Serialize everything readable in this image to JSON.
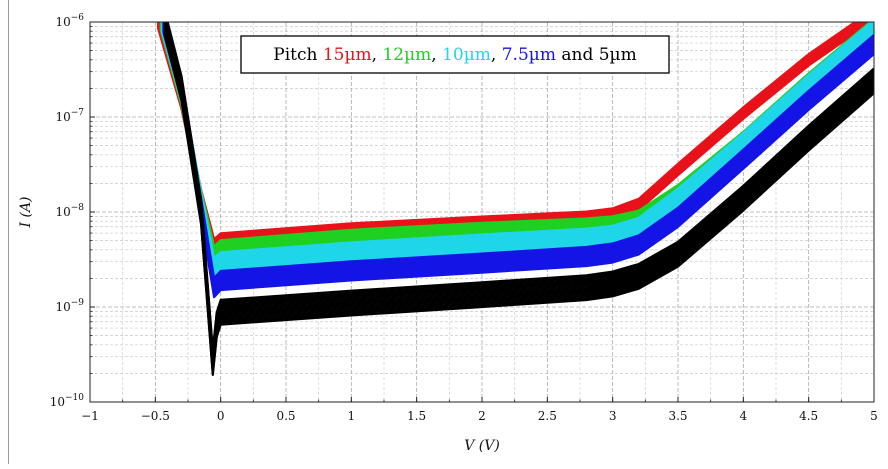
{
  "chart_data": {
    "type": "line",
    "title": "",
    "xlabel": "V (V)",
    "ylabel": "I (A)",
    "xlim": [
      -1,
      5
    ],
    "ylim": [
      1e-10,
      1e-06
    ],
    "yscale": "log",
    "grid": true,
    "legend": {
      "placement": "top-center",
      "prefix": "Pitch ",
      "items": [
        {
          "text": "15µm",
          "color": "#e8121b",
          "sep": ", "
        },
        {
          "text": "12µm",
          "color": "#20d020",
          "sep": ", "
        },
        {
          "text": "10µm",
          "color": "#1ed6e8",
          "sep": ", "
        },
        {
          "text": "7.5µm",
          "color": "#1414e6",
          "sep": " and "
        },
        {
          "text": "5µm",
          "color": "#000000",
          "sep": ""
        }
      ]
    },
    "x_ticks": [
      "−1",
      "−0.5",
      "0",
      "0.5",
      "1",
      "1.5",
      "2",
      "2.5",
      "3",
      "3.5",
      "4",
      "4.5",
      "5"
    ],
    "x_tick_values": [
      -1,
      -0.5,
      0,
      0.5,
      1,
      1.5,
      2,
      2.5,
      3,
      3.5,
      4,
      4.5,
      5
    ],
    "y_tick_exponents": [
      -10,
      -9,
      -8,
      -7,
      -6
    ],
    "series": [
      {
        "name": "15µm",
        "color": "#e8121b",
        "band": 0.06,
        "x": [
          -0.48,
          -0.3,
          -0.15,
          -0.05,
          0.0,
          1.0,
          2.0,
          2.8,
          3.0,
          3.2,
          3.5,
          4.0,
          4.5,
          5.0
        ],
        "y": [
          1e-06,
          1.4e-07,
          1.5e-08,
          4.5e-09,
          5.2e-09,
          6.6e-09,
          7.8e-09,
          8.8e-09,
          9.5e-09,
          1.2e-08,
          2.8e-08,
          1.1e-07,
          4e-07,
          1.2e-06
        ]
      },
      {
        "name": "12µm",
        "color": "#20d020",
        "band": 0.08,
        "x": [
          -0.46,
          -0.3,
          -0.15,
          -0.05,
          0.0,
          1.0,
          2.0,
          2.8,
          3.0,
          3.2,
          3.5,
          4.0,
          4.5,
          5.0
        ],
        "y": [
          1e-06,
          1.6e-07,
          1.4e-08,
          3.6e-09,
          4.2e-09,
          5.4e-09,
          6.4e-09,
          7.1e-09,
          7.5e-09,
          8.6e-09,
          1.6e-08,
          5.8e-08,
          2.4e-07,
          9e-07
        ]
      },
      {
        "name": "10µm",
        "color": "#1ed6e8",
        "band": 0.1,
        "x": [
          -0.45,
          -0.3,
          -0.15,
          -0.05,
          0.0,
          1.0,
          2.0,
          2.8,
          3.0,
          3.2,
          3.5,
          4.0,
          4.5,
          5.0
        ],
        "y": [
          1e-06,
          1.8e-07,
          1.3e-08,
          2.6e-09,
          3e-09,
          3.8e-09,
          4.6e-09,
          5.3e-09,
          5.7e-09,
          6.9e-09,
          1.4e-08,
          5.4e-08,
          2.2e-07,
          8.4e-07
        ]
      },
      {
        "name": "7.5µm",
        "color": "#1414e6",
        "band": 0.1,
        "x": [
          -0.44,
          -0.3,
          -0.15,
          -0.05,
          0.0,
          1.0,
          2.0,
          2.8,
          3.0,
          3.2,
          3.5,
          4.0,
          4.5,
          5.0
        ],
        "y": [
          1e-06,
          1.9e-07,
          1.1e-08,
          1.6e-09,
          1.9e-09,
          2.4e-09,
          2.9e-09,
          3.4e-09,
          3.7e-09,
          4.5e-09,
          8.8e-09,
          3.6e-08,
          1.5e-07,
          5.8e-07
        ]
      },
      {
        "name": "5µm",
        "color": "#000000",
        "band": 0.13,
        "x": [
          -0.43,
          -0.3,
          -0.15,
          -0.06,
          -0.03,
          0.0,
          1.0,
          2.0,
          2.8,
          3.0,
          3.2,
          3.5,
          4.0,
          4.5,
          5.0
        ],
        "y": [
          1e-06,
          2e-07,
          1e-08,
          2.6e-10,
          6.5e-10,
          8.8e-10,
          1.1e-09,
          1.35e-09,
          1.6e-09,
          1.75e-09,
          2.1e-09,
          3.6e-09,
          1.4e-08,
          6e-08,
          2.4e-07
        ]
      }
    ]
  }
}
